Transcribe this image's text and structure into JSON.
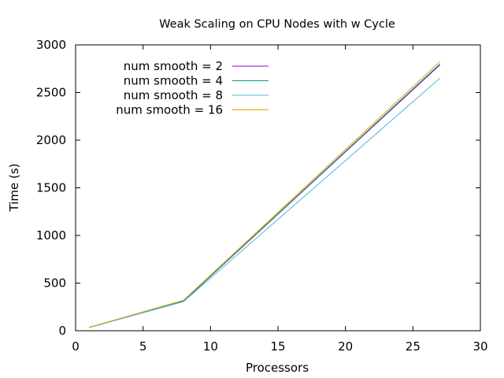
{
  "chart_data": {
    "type": "line",
    "title": "Weak Scaling on CPU Nodes with w Cycle",
    "xlabel": "Processors",
    "ylabel": "Time (s)",
    "xlim": [
      0,
      30
    ],
    "ylim": [
      0,
      3000
    ],
    "xticks": [
      0,
      5,
      10,
      15,
      20,
      25,
      30
    ],
    "yticks": [
      0,
      500,
      1000,
      1500,
      2000,
      2500,
      3000
    ],
    "grid": false,
    "legend_position": "top-left",
    "x": [
      1,
      8,
      27
    ],
    "series": [
      {
        "name": "num smooth = 2",
        "values": [
          35,
          310,
          2790
        ],
        "color": "#9400d3"
      },
      {
        "name": "num smooth = 4",
        "values": [
          35,
          312,
          2800
        ],
        "color": "#009e73"
      },
      {
        "name": "num smooth = 8",
        "values": [
          33,
          305,
          2650
        ],
        "color": "#56b4e9"
      },
      {
        "name": "num smooth = 16",
        "values": [
          36,
          320,
          2825
        ],
        "color": "#e69f00"
      }
    ]
  }
}
